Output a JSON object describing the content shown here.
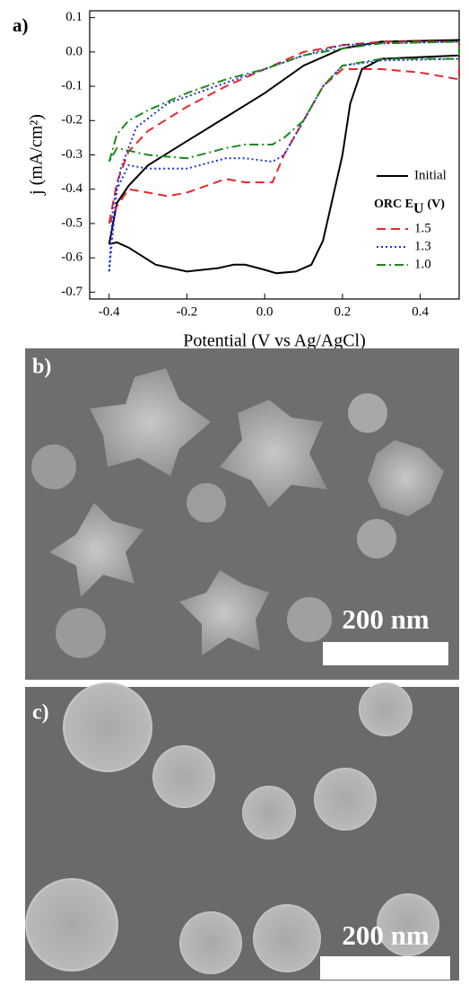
{
  "chart_data": {
    "type": "line",
    "panel_label": "a)",
    "x_label": "Potential (V vs Ag/AgCl)",
    "y_label": "j (mA/cm²)",
    "xlim": [
      -0.45,
      0.5
    ],
    "ylim": [
      -0.72,
      0.12
    ],
    "xticks": [
      -0.4,
      -0.2,
      {
        "value": 0,
        "label": "0.0"
      },
      0.2,
      0.4
    ],
    "yticks": [
      0.1,
      {
        "value": 0,
        "label": "0.0"
      },
      -0.1,
      -0.2,
      -0.3,
      -0.4,
      -0.5,
      -0.6,
      -0.7
    ],
    "legend_title": "ORC E",
    "legend_title_sub": "U",
    "legend_title_end": "(V)",
    "series": [
      {
        "name": "Initial",
        "color": "#000000",
        "dash": "solid",
        "x": [
          -0.4,
          -0.38,
          -0.35,
          -0.3,
          -0.2,
          -0.1,
          0,
          0.1,
          0.2,
          0.3,
          0.5,
          0.5,
          0.4,
          0.3,
          0.25,
          0.22,
          0.2,
          0.17,
          0.15,
          0.12,
          0.08,
          0.03,
          0,
          -0.05,
          -0.08,
          -0.12,
          -0.2,
          -0.28,
          -0.35,
          -0.38,
          -0.4
        ],
        "values": [
          -0.56,
          -0.44,
          -0.39,
          -0.33,
          -0.26,
          -0.19,
          -0.12,
          -0.04,
          0.01,
          0.03,
          0.035,
          -0.01,
          -0.015,
          -0.02,
          -0.05,
          -0.15,
          -0.3,
          -0.45,
          -0.55,
          -0.62,
          -0.64,
          -0.645,
          -0.635,
          -0.62,
          -0.62,
          -0.63,
          -0.64,
          -0.62,
          -0.57,
          -0.555,
          -0.56
        ]
      },
      {
        "name": "1.5",
        "color": "#e8262b",
        "dash": "dashed",
        "x": [
          -0.4,
          -0.38,
          -0.35,
          -0.3,
          -0.2,
          -0.1,
          0,
          0.1,
          0.2,
          0.3,
          0.5,
          0.5,
          0.4,
          0.3,
          0.2,
          0.15,
          0.1,
          0.05,
          0.02,
          0,
          -0.05,
          -0.1,
          -0.2,
          -0.25,
          -0.3,
          -0.35,
          -0.38,
          -0.4
        ],
        "values": [
          -0.5,
          -0.38,
          -0.29,
          -0.23,
          -0.16,
          -0.1,
          -0.05,
          0,
          0.02,
          0.03,
          0.03,
          -0.08,
          -0.06,
          -0.05,
          -0.05,
          -0.1,
          -0.2,
          -0.3,
          -0.38,
          -0.38,
          -0.38,
          -0.37,
          -0.41,
          -0.42,
          -0.41,
          -0.4,
          -0.45,
          -0.5
        ]
      },
      {
        "name": "1.3",
        "color": "#1f2fd6",
        "dash": "dotted",
        "x": [
          -0.4,
          -0.39,
          -0.37,
          -0.33,
          -0.25,
          -0.1,
          0,
          0.1,
          0.2,
          0.3,
          0.5,
          0.5,
          0.3,
          0.2,
          0.15,
          0.1,
          0.05,
          0.02,
          -0.05,
          -0.1,
          -0.2,
          -0.3,
          -0.35,
          -0.38,
          -0.4
        ],
        "values": [
          -0.64,
          -0.45,
          -0.34,
          -0.22,
          -0.15,
          -0.09,
          -0.05,
          -0.01,
          0.02,
          0.025,
          0.03,
          -0.02,
          -0.025,
          -0.04,
          -0.1,
          -0.2,
          -0.3,
          -0.32,
          -0.31,
          -0.31,
          -0.34,
          -0.34,
          -0.33,
          -0.4,
          -0.64
        ]
      },
      {
        "name": "1.0",
        "color": "#1a8a1a",
        "dash": "dashdot",
        "x": [
          -0.4,
          -0.38,
          -0.35,
          -0.3,
          -0.2,
          -0.1,
          0,
          0.1,
          0.2,
          0.3,
          0.5,
          0.5,
          0.3,
          0.2,
          0.15,
          0.1,
          0.05,
          0.02,
          -0.05,
          -0.1,
          -0.2,
          -0.3,
          -0.38,
          -0.4
        ],
        "values": [
          -0.32,
          -0.24,
          -0.2,
          -0.17,
          -0.12,
          -0.08,
          -0.05,
          -0.01,
          0.01,
          0.025,
          0.03,
          -0.02,
          -0.02,
          -0.04,
          -0.1,
          -0.2,
          -0.25,
          -0.27,
          -0.27,
          -0.28,
          -0.31,
          -0.3,
          -0.28,
          -0.32
        ]
      }
    ]
  },
  "panels": [
    {
      "label": "b)",
      "scale_bar": "200 nm"
    },
    {
      "label": "c)",
      "scale_bar": "200 nm"
    }
  ]
}
